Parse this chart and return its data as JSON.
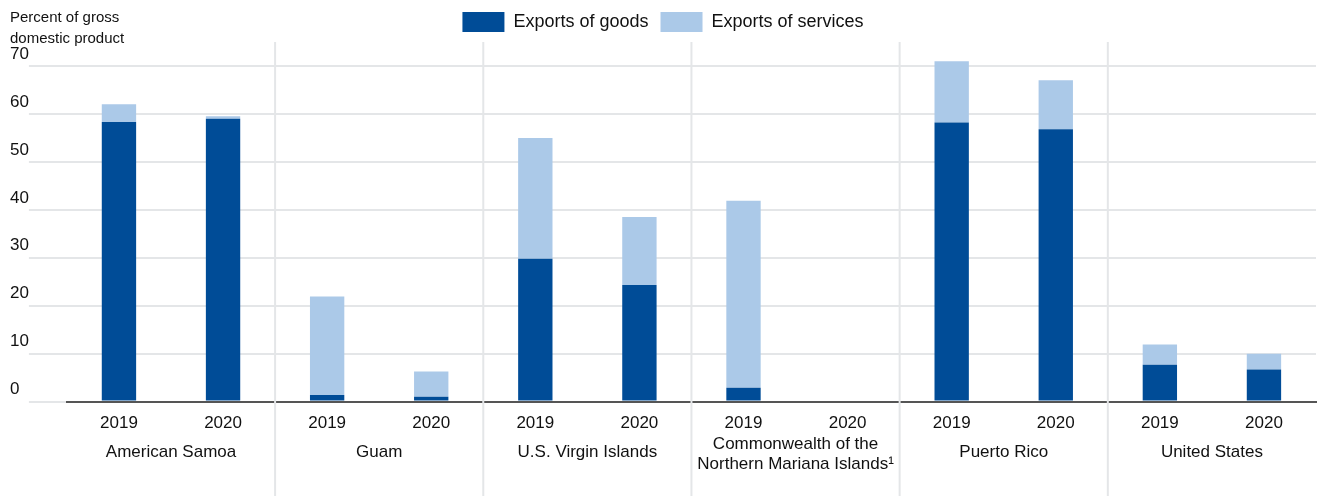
{
  "chart_data": {
    "type": "bar",
    "stacked": true,
    "ylabel": "Percent of gross domestic product",
    "categories": [
      "2019",
      "2020",
      "2019",
      "2020",
      "2019",
      "2020",
      "2019",
      "2020",
      "2019",
      "2020",
      "2019",
      "2020"
    ],
    "annotations": [
      "American Samoa",
      "Guam",
      "U.S. Virgin Islands",
      "Commonwealth of the Northern Mariana Islands¹",
      "Puerto Rico",
      "United States"
    ],
    "series": [
      {
        "name": "Exports of goods",
        "color": "#004c97",
        "values": [
          58.3,
          59.0,
          1.4,
          1.0,
          29.8,
          24.3,
          2.9,
          null,
          58.2,
          56.8,
          7.7,
          6.7
        ]
      },
      {
        "name": "Exports of services",
        "color": "#abc9e8",
        "values": [
          3.7,
          0.5,
          20.5,
          5.3,
          25.2,
          14.2,
          39.0,
          null,
          12.8,
          10.2,
          4.2,
          3.3
        ]
      }
    ],
    "ylim": [
      0,
      75
    ],
    "yticks": [
      0,
      10,
      20,
      30,
      40,
      50,
      60,
      70
    ],
    "grid": true,
    "legend": "top"
  }
}
